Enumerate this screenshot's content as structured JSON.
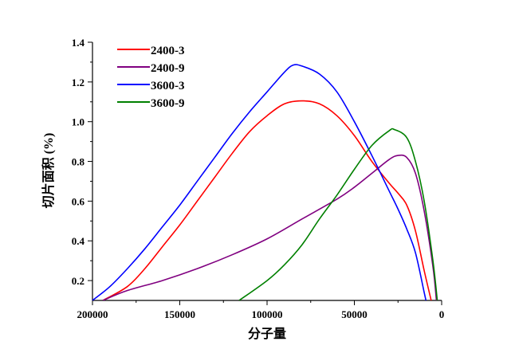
{
  "chart_data": {
    "type": "line",
    "title": "",
    "xlabel": "分子量",
    "ylabel": "切片面积 (%)",
    "xlim": [
      200000,
      0
    ],
    "ylim": [
      0.1,
      1.4
    ],
    "x_reversed": true,
    "xticks": [
      200000,
      150000,
      100000,
      50000,
      0
    ],
    "xtick_labels": [
      "200000",
      "150000",
      "100000",
      "50000",
      "0"
    ],
    "yticks": [
      0.2,
      0.4,
      0.6,
      0.8,
      1.0,
      1.2,
      1.4
    ],
    "ytick_labels": [
      "0.2",
      "0.4",
      "0.6",
      "0.8",
      "1.0",
      "1.2",
      "1.4"
    ],
    "grid": false,
    "legend_position": "top-left",
    "series": [
      {
        "name": "2400-3",
        "color": "#ff0000",
        "x": [
          194000,
          180000,
          170000,
          160000,
          150000,
          140000,
          130000,
          120000,
          110000,
          100000,
          90000,
          80000,
          70000,
          60000,
          50000,
          40000,
          30000,
          25000,
          20000,
          15000,
          10000,
          6000
        ],
        "y": [
          0.1,
          0.17,
          0.26,
          0.37,
          0.48,
          0.6,
          0.72,
          0.84,
          0.95,
          1.03,
          1.09,
          1.105,
          1.09,
          1.03,
          0.93,
          0.8,
          0.69,
          0.64,
          0.58,
          0.45,
          0.25,
          0.1
        ]
      },
      {
        "name": "2400-9",
        "color": "#800080",
        "x": [
          194000,
          180000,
          160000,
          140000,
          120000,
          100000,
          80000,
          60000,
          50000,
          40000,
          30000,
          25000,
          20000,
          15000,
          10000,
          5000,
          3000
        ],
        "y": [
          0.1,
          0.15,
          0.2,
          0.26,
          0.33,
          0.41,
          0.51,
          0.61,
          0.67,
          0.74,
          0.81,
          0.83,
          0.82,
          0.74,
          0.55,
          0.27,
          0.1
        ]
      },
      {
        "name": "3600-3",
        "color": "#0000ff",
        "x": [
          200000,
          190000,
          180000,
          170000,
          160000,
          150000,
          140000,
          130000,
          120000,
          110000,
          100000,
          90000,
          85000,
          80000,
          70000,
          60000,
          50000,
          40000,
          30000,
          25000,
          20000,
          15000,
          10000,
          9000
        ],
        "y": [
          0.1,
          0.17,
          0.26,
          0.36,
          0.47,
          0.58,
          0.7,
          0.82,
          0.94,
          1.05,
          1.15,
          1.25,
          1.285,
          1.28,
          1.24,
          1.15,
          1.0,
          0.83,
          0.65,
          0.56,
          0.46,
          0.34,
          0.14,
          0.1
        ]
      },
      {
        "name": "3600-9",
        "color": "#008000",
        "x": [
          116000,
          100000,
          90000,
          80000,
          70000,
          60000,
          50000,
          40000,
          30000,
          27000,
          20000,
          15000,
          10000,
          5000,
          2500
        ],
        "y": [
          0.1,
          0.2,
          0.28,
          0.38,
          0.51,
          0.63,
          0.76,
          0.88,
          0.955,
          0.96,
          0.92,
          0.8,
          0.6,
          0.3,
          0.1
        ]
      }
    ]
  }
}
